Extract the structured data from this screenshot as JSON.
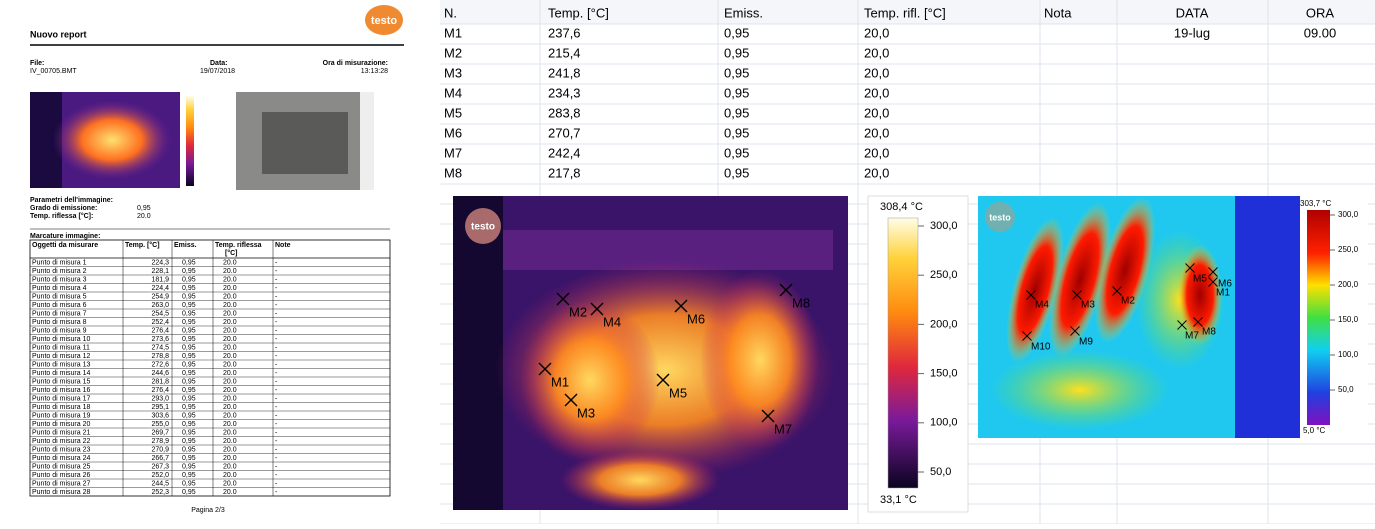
{
  "report": {
    "logo": "testo",
    "title": "Nuovo report",
    "file_label": "File:",
    "file": "IV_00705.BMT",
    "date_label": "Data:",
    "date": "19/07/2018",
    "time_label": "Ora di misurazione:",
    "time": "13:13:28",
    "params_title": "Parametri dell'immagine:",
    "emission_label": "Grado di emissione:",
    "emission": "0,95",
    "reflected_label": "Temp. riflessa [°C]:",
    "reflected": "20.0",
    "markers_title": "Marcature immagine:",
    "table": {
      "header": [
        "Oggetti da misurare",
        "Temp. [°C]",
        "Emiss.",
        "Temp. riflessa [°C]",
        "Note"
      ],
      "rows": [
        [
          "Punto di misura 1",
          "224,3",
          "0,95",
          "20.0",
          "-"
        ],
        [
          "Punto di misura 2",
          "228,1",
          "0,95",
          "20.0",
          "-"
        ],
        [
          "Punto di misura 3",
          "181,9",
          "0,95",
          "20.0",
          "-"
        ],
        [
          "Punto di misura 4",
          "224,4",
          "0,95",
          "20.0",
          "-"
        ],
        [
          "Punto di misura 5",
          "254,9",
          "0,95",
          "20.0",
          "-"
        ],
        [
          "Punto di misura 6",
          "263,0",
          "0,95",
          "20.0",
          "-"
        ],
        [
          "Punto di misura 7",
          "254,5",
          "0,95",
          "20.0",
          "-"
        ],
        [
          "Punto di misura 8",
          "252,4",
          "0,95",
          "20.0",
          "-"
        ],
        [
          "Punto di misura 9",
          "276,4",
          "0,95",
          "20.0",
          "-"
        ],
        [
          "Punto di misura 10",
          "273,6",
          "0,95",
          "20.0",
          "-"
        ],
        [
          "Punto di misura 11",
          "274,5",
          "0,95",
          "20.0",
          "-"
        ],
        [
          "Punto di misura 12",
          "278,8",
          "0,95",
          "20.0",
          "-"
        ],
        [
          "Punto di misura 13",
          "272,6",
          "0,95",
          "20.0",
          "-"
        ],
        [
          "Punto di misura 14",
          "244,6",
          "0,95",
          "20.0",
          "-"
        ],
        [
          "Punto di misura 15",
          "281,8",
          "0,95",
          "20.0",
          "-"
        ],
        [
          "Punto di misura 16",
          "276,4",
          "0,95",
          "20.0",
          "-"
        ],
        [
          "Punto di misura 17",
          "293,0",
          "0,95",
          "20.0",
          "-"
        ],
        [
          "Punto di misura 18",
          "295,1",
          "0,95",
          "20.0",
          "-"
        ],
        [
          "Punto di misura 19",
          "303,6",
          "0,95",
          "20.0",
          "-"
        ],
        [
          "Punto di misura 20",
          "255,0",
          "0,95",
          "20.0",
          "-"
        ],
        [
          "Punto di misura 21",
          "269,7",
          "0,95",
          "20.0",
          "-"
        ],
        [
          "Punto di misura 22",
          "278,9",
          "0,95",
          "20.0",
          "-"
        ],
        [
          "Punto di misura 23",
          "270,9",
          "0,95",
          "20.0",
          "-"
        ],
        [
          "Punto di misura 24",
          "266,7",
          "0,95",
          "20.0",
          "-"
        ],
        [
          "Punto di misura 25",
          "267,3",
          "0,95",
          "20.0",
          "-"
        ],
        [
          "Punto di misura 26",
          "252,0",
          "0,95",
          "20.0",
          "-"
        ],
        [
          "Punto di misura 27",
          "244,5",
          "0,95",
          "20.0",
          "-"
        ],
        [
          "Punto di misura 28",
          "252,3",
          "0,95",
          "20.0",
          "-"
        ]
      ]
    },
    "footer": "Pagina 2/3"
  },
  "sheet": {
    "header": {
      "n": "N.",
      "temp": "Temp. [°C]",
      "emiss": "Emiss.",
      "rifl": "Temp. rifl. [°C]",
      "nota": "Nota",
      "data": "DATA",
      "ora": "ORA"
    },
    "rows": [
      {
        "n": "M1",
        "temp": "237,6",
        "emiss": "0,95",
        "rifl": "20,0",
        "data": "19-lug",
        "ora": "09.00"
      },
      {
        "n": "M2",
        "temp": "215,4",
        "emiss": "0,95",
        "rifl": "20,0"
      },
      {
        "n": "M3",
        "temp": "241,8",
        "emiss": "0,95",
        "rifl": "20,0"
      },
      {
        "n": "M4",
        "temp": "234,3",
        "emiss": "0,95",
        "rifl": "20,0"
      },
      {
        "n": "M5",
        "temp": "283,8",
        "emiss": "0,95",
        "rifl": "20,0"
      },
      {
        "n": "M6",
        "temp": "270,7",
        "emiss": "0,95",
        "rifl": "20,0"
      },
      {
        "n": "M7",
        "temp": "242,4",
        "emiss": "0,95",
        "rifl": "20,0"
      },
      {
        "n": "M8",
        "temp": "217,8",
        "emiss": "0,95",
        "rifl": "20,0"
      }
    ]
  },
  "image1": {
    "logo": "testo",
    "markers": [
      "M1",
      "M2",
      "M3",
      "M4",
      "M5",
      "M6",
      "M7",
      "M8"
    ],
    "scale_max": "308,4 °C",
    "scale_min": "33,1 °C",
    "scale_ticks": [
      "300,0",
      "250,0",
      "200,0",
      "150,0",
      "100,0",
      "50,0"
    ]
  },
  "image2": {
    "logo": "testo",
    "markers": [
      "M1",
      "M2",
      "M3",
      "M4",
      "M5",
      "M6",
      "M7",
      "M8",
      "M9",
      "M10"
    ],
    "scale_max": "303,7 °C",
    "scale_min": "5,0 °C",
    "scale_ticks": [
      "300,0",
      "250,0",
      "200,0",
      "150,0",
      "100,0",
      "50,0"
    ]
  }
}
